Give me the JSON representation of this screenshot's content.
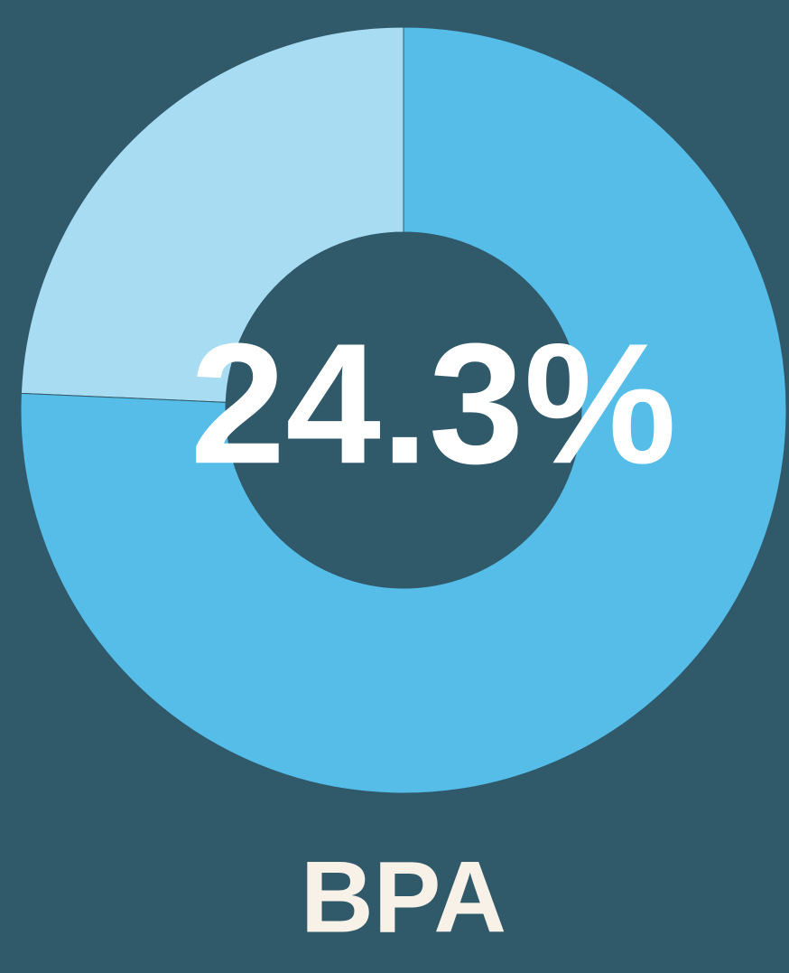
{
  "chart_data": {
    "type": "pie",
    "donut": true,
    "categories": [
      "BPA",
      null
    ],
    "values": [
      24.3,
      75.7
    ],
    "value_labels": [
      "24.3%",
      null
    ],
    "colors": [
      "#a8dcf2",
      "#55bde8"
    ]
  }
}
